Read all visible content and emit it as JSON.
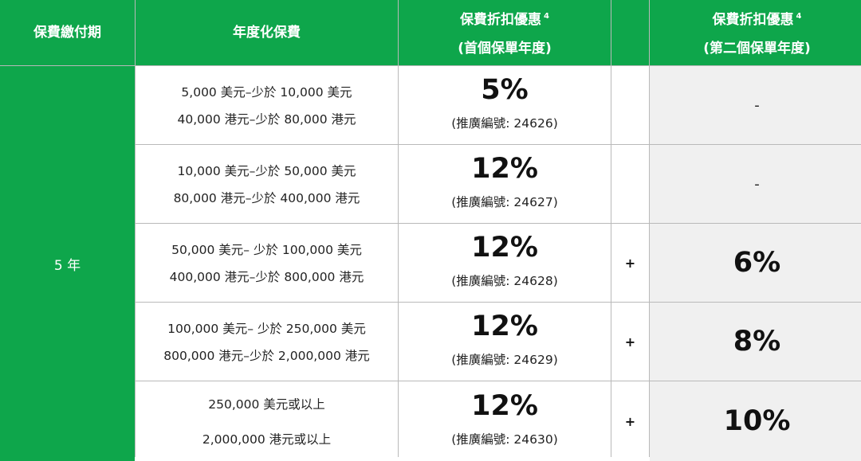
{
  "headers": {
    "term": "保費繳付期",
    "premium": "年度化保費",
    "discount1_title": "保費折扣優惠",
    "discount1_note": "4",
    "discount1_sub": "(首個保單年度)",
    "discount2_title": "保費折扣優惠",
    "discount2_note": "4",
    "discount2_sub": "(第二個保單年度)"
  },
  "term": "5 年",
  "rows": [
    {
      "usd": "5,000 美元–少於 10,000 美元",
      "hkd": "40,000 港元–少於 80,000 港元",
      "rate": "5%",
      "promo": "(推廣編號: 24626)",
      "plus": "",
      "second": "-"
    },
    {
      "usd": "10,000 美元–少於 50,000 美元",
      "hkd": "80,000 港元–少於 400,000 港元",
      "rate": "12%",
      "promo": "(推廣編號: 24627)",
      "plus": "",
      "second": "-"
    },
    {
      "usd": "50,000 美元– 少於 100,000 美元",
      "hkd": "400,000 港元–少於 800,000 港元",
      "rate": "12%",
      "promo": "(推廣編號: 24628)",
      "plus": "+",
      "second": "6%"
    },
    {
      "usd": "100,000 美元– 少於 250,000 美元",
      "hkd": "800,000 港元–少於 2,000,000 港元",
      "rate": "12%",
      "promo": "(推廣編號: 24629)",
      "plus": "+",
      "second": "8%"
    },
    {
      "usd": "250,000 美元或以上",
      "hkd": "2,000,000 港元或以上",
      "rate": "12%",
      "promo": "(推廣編號: 24630)",
      "plus": "+",
      "second": "10%"
    }
  ]
}
